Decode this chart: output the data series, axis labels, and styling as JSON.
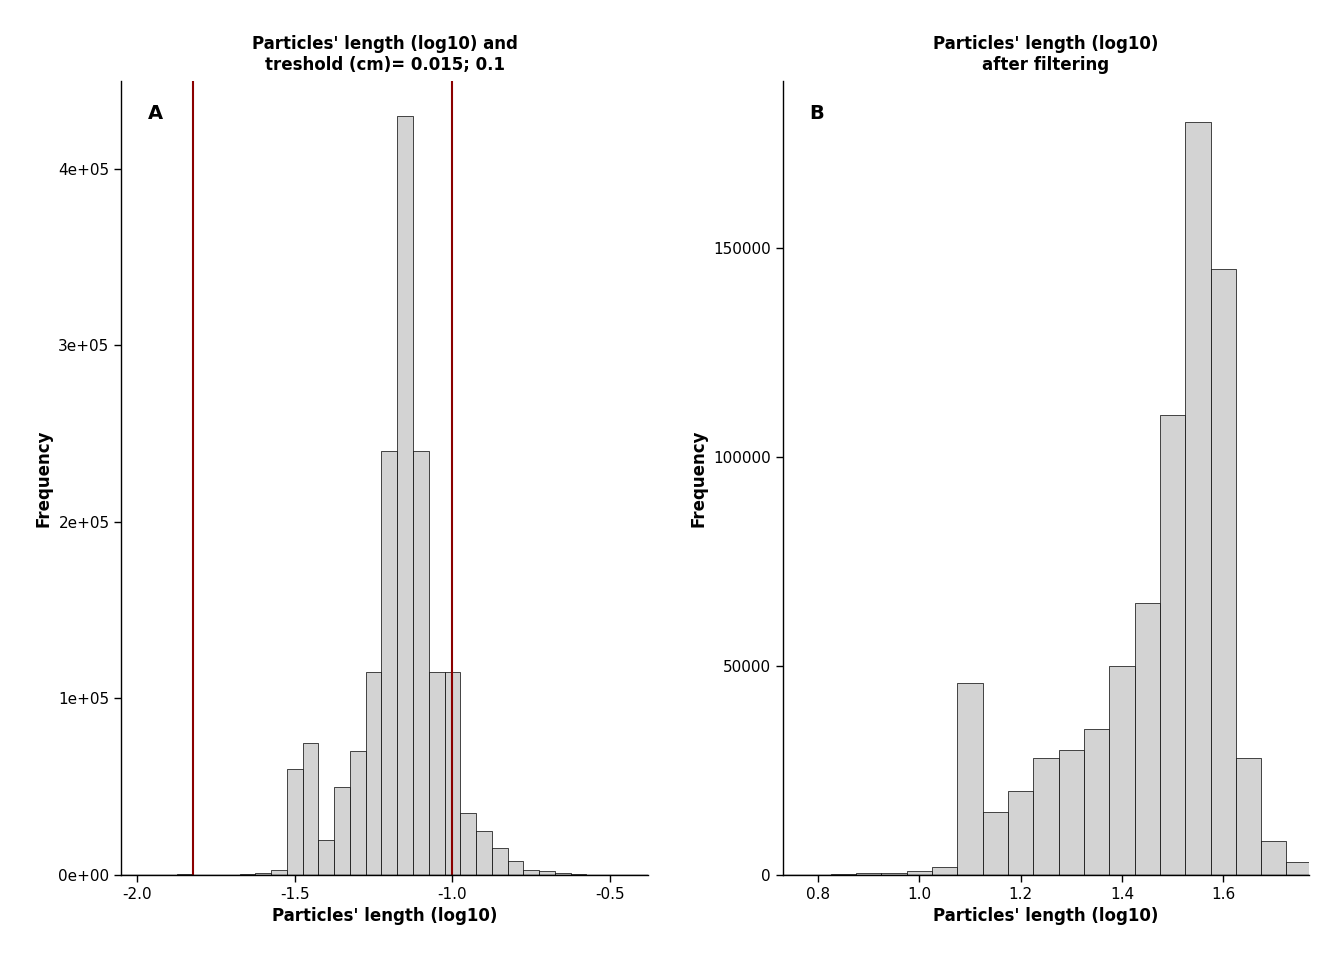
{
  "panel_A": {
    "title": "Particles' length (log10) and\ntreshold (cm)= 0.015; 0.1",
    "xlabel": "Particles' length (log10)",
    "ylabel": "Frequency",
    "label": "A",
    "vline1": -1.8239,
    "vline2": -1.0,
    "xlim": [
      -2.05,
      -0.38
    ],
    "ylim": [
      0,
      450000
    ],
    "yticks": [
      0,
      100000,
      200000,
      300000,
      400000
    ],
    "ytick_labels": [
      "0e+00",
      "1e+05",
      "2e+05",
      "3e+05",
      "4e+05"
    ],
    "xticks": [
      -2.0,
      -1.5,
      -1.0,
      -0.5
    ],
    "xtick_labels": [
      "-2.0",
      "-1.5",
      "-1.0",
      "-0.5"
    ],
    "hist_color": "#d3d3d3",
    "hist_edge_color": "#000000",
    "vline_color": "#8b0000",
    "bar_lefts": [
      -2.025,
      -1.975,
      -1.925,
      -1.875,
      -1.825,
      -1.775,
      -1.725,
      -1.675,
      -1.625,
      -1.575,
      -1.525,
      -1.475,
      -1.425,
      -1.375,
      -1.325,
      -1.275,
      -1.225,
      -1.175,
      -1.125,
      -1.075,
      -1.025,
      -0.975,
      -0.925,
      -0.875,
      -0.825,
      -0.775,
      -0.725,
      -0.675,
      -0.625,
      -0.575,
      -0.525,
      -0.475
    ],
    "bar_heights": [
      0,
      0,
      0,
      500,
      0,
      0,
      0,
      500,
      1000,
      3000,
      60000,
      75000,
      20000,
      50000,
      70000,
      115000,
      240000,
      430000,
      240000,
      115000,
      115000,
      35000,
      25000,
      15000,
      8000,
      3000,
      2000,
      1000,
      500,
      200,
      100,
      50
    ],
    "bin_width": 0.05
  },
  "panel_B": {
    "title": "Particles' length (log10)\nafter filtering",
    "xlabel": "Particles' length (log10)",
    "ylabel": "Frequency",
    "label": "B",
    "xlim": [
      0.73,
      1.77
    ],
    "ylim": [
      0,
      190000
    ],
    "yticks": [
      0,
      50000,
      100000,
      150000
    ],
    "ytick_labels": [
      "0",
      "50000",
      "100000",
      "150000"
    ],
    "xticks": [
      0.8,
      1.0,
      1.2,
      1.4,
      1.6
    ],
    "xtick_labels": [
      "0.8",
      "1.0",
      "1.2",
      "1.4",
      "1.6"
    ],
    "hist_color": "#d3d3d3",
    "hist_edge_color": "#000000",
    "bar_lefts": [
      0.775,
      0.825,
      0.875,
      0.925,
      0.975,
      1.025,
      1.075,
      1.125,
      1.175,
      1.225,
      1.275,
      1.325,
      1.375,
      1.425,
      1.475,
      1.525,
      1.575,
      1.625,
      1.675,
      1.725
    ],
    "bar_heights": [
      0,
      200,
      500,
      500,
      1000,
      2000,
      46000,
      15000,
      20000,
      28000,
      30000,
      35000,
      50000,
      65000,
      110000,
      180000,
      145000,
      28000,
      8000,
      3000
    ],
    "bin_width": 0.05
  },
  "background_color": "#ffffff",
  "title_fontsize": 12,
  "label_fontsize": 12,
  "tick_fontsize": 11,
  "panel_label_fontsize": 14
}
